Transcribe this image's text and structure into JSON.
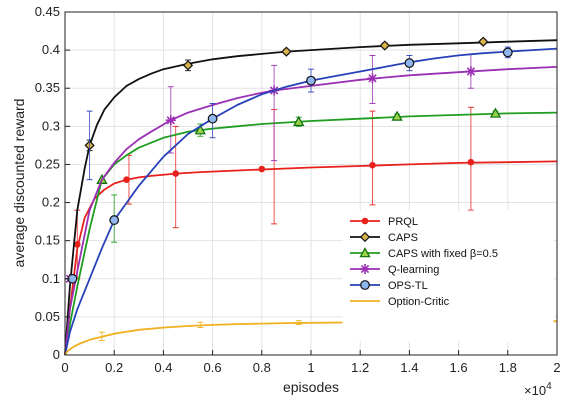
{
  "chart_data": {
    "type": "line",
    "title": "",
    "xlabel": "episodes",
    "ylabel": "average discounted reward",
    "x_multiplier_label": "×10",
    "x_multiplier_exp": "4",
    "xlim": [
      0,
      2
    ],
    "ylim": [
      0,
      0.45
    ],
    "xticks": [
      "0",
      "0.2",
      "0.4",
      "0.6",
      "0.8",
      "1",
      "1.2",
      "1.4",
      "1.6",
      "1.8",
      "2"
    ],
    "yticks": [
      "0",
      "0.05",
      "0.1",
      "0.15",
      "0.2",
      "0.25",
      "0.3",
      "0.35",
      "0.4",
      "0.45"
    ],
    "grid": true,
    "legend_position": "lower-right",
    "series": [
      {
        "name": "PRQL",
        "color": "#e8211c",
        "marker": "circle-small",
        "x": [
          0,
          0.02,
          0.05,
          0.08,
          0.12,
          0.16,
          0.2,
          0.25,
          0.3,
          0.35,
          0.45,
          0.55,
          0.7,
          0.85,
          1.0,
          1.2,
          1.4,
          1.6,
          1.8,
          2.0
        ],
        "y": [
          0,
          0.06,
          0.14,
          0.18,
          0.205,
          0.217,
          0.225,
          0.23,
          0.233,
          0.235,
          0.238,
          0.24,
          0.242,
          0.244,
          0.246,
          0.248,
          0.25,
          0.252,
          0.253,
          0.254
        ],
        "markers": [
          {
            "x": 0.05,
            "y": 0.145
          },
          {
            "x": 0.25,
            "y": 0.23
          },
          {
            "x": 0.45,
            "y": 0.238
          },
          {
            "x": 0.8,
            "y": 0.244
          },
          {
            "x": 1.25,
            "y": 0.249
          },
          {
            "x": 1.65,
            "y": 0.253
          }
        ],
        "errorbars": [
          {
            "x": 0.05,
            "lo": 0.1,
            "hi": 0.19
          },
          {
            "x": 0.26,
            "lo": 0.198,
            "hi": 0.262
          },
          {
            "x": 0.45,
            "lo": 0.167,
            "hi": 0.3
          },
          {
            "x": 0.85,
            "lo": 0.172,
            "hi": 0.322
          },
          {
            "x": 1.25,
            "lo": 0.197,
            "hi": 0.32
          },
          {
            "x": 1.65,
            "lo": 0.19,
            "hi": 0.325
          }
        ]
      },
      {
        "name": "CAPS",
        "color": "#111111",
        "marker": "diamond",
        "x": [
          0,
          0.02,
          0.05,
          0.08,
          0.1,
          0.13,
          0.16,
          0.2,
          0.25,
          0.3,
          0.35,
          0.4,
          0.5,
          0.6,
          0.7,
          0.8,
          0.9,
          1.0,
          1.2,
          1.4,
          1.6,
          1.8,
          2.0
        ],
        "y": [
          0,
          0.09,
          0.19,
          0.245,
          0.275,
          0.302,
          0.322,
          0.338,
          0.353,
          0.362,
          0.369,
          0.375,
          0.382,
          0.388,
          0.392,
          0.395,
          0.398,
          0.4,
          0.404,
          0.407,
          0.409,
          0.411,
          0.413
        ],
        "markers": [
          {
            "x": 0.1,
            "y": 0.275
          },
          {
            "x": 0.5,
            "y": 0.38
          },
          {
            "x": 0.9,
            "y": 0.398
          },
          {
            "x": 1.3,
            "y": 0.406
          },
          {
            "x": 1.7,
            "y": 0.411
          }
        ],
        "errorbars": [
          {
            "x": 0.1,
            "lo": 0.268,
            "hi": 0.282
          },
          {
            "x": 0.5,
            "lo": 0.373,
            "hi": 0.387
          },
          {
            "x": 0.9,
            "lo": 0.395,
            "hi": 0.401
          },
          {
            "x": 1.3,
            "lo": 0.403,
            "hi": 0.409
          },
          {
            "x": 1.7,
            "lo": 0.408,
            "hi": 0.414
          }
        ]
      },
      {
        "name": "CAPS with fixed β=0.5",
        "color": "#1f9d1f",
        "marker": "triangle",
        "x": [
          0,
          0.02,
          0.05,
          0.1,
          0.15,
          0.2,
          0.25,
          0.3,
          0.4,
          0.5,
          0.6,
          0.7,
          0.8,
          0.9,
          1.0,
          1.2,
          1.4,
          1.6,
          1.8,
          2.0
        ],
        "y": [
          0,
          0.04,
          0.09,
          0.165,
          0.23,
          0.25,
          0.262,
          0.272,
          0.285,
          0.293,
          0.297,
          0.3,
          0.303,
          0.305,
          0.307,
          0.31,
          0.313,
          0.315,
          0.317,
          0.318
        ],
        "markers": [
          {
            "x": 0.15,
            "y": 0.23
          },
          {
            "x": 0.55,
            "y": 0.295
          },
          {
            "x": 0.95,
            "y": 0.306
          },
          {
            "x": 1.35,
            "y": 0.313
          },
          {
            "x": 1.75,
            "y": 0.317
          }
        ],
        "errorbars": [
          {
            "x": 0.2,
            "lo": 0.148,
            "hi": 0.21
          },
          {
            "x": 0.55,
            "lo": 0.287,
            "hi": 0.303
          },
          {
            "x": 0.95,
            "lo": 0.3,
            "hi": 0.312
          },
          {
            "x": 1.35,
            "lo": 0.31,
            "hi": 0.316
          },
          {
            "x": 1.75,
            "lo": 0.314,
            "hi": 0.32
          }
        ]
      },
      {
        "name": "Q-learning",
        "color": "#9b30b5",
        "marker": "star",
        "x": [
          0,
          0.02,
          0.05,
          0.1,
          0.15,
          0.2,
          0.25,
          0.3,
          0.35,
          0.43,
          0.5,
          0.6,
          0.7,
          0.8,
          0.85,
          1.0,
          1.2,
          1.4,
          1.6,
          1.8,
          2.0
        ],
        "y": [
          0,
          0.06,
          0.11,
          0.19,
          0.23,
          0.252,
          0.27,
          0.283,
          0.293,
          0.308,
          0.318,
          0.328,
          0.337,
          0.344,
          0.347,
          0.353,
          0.361,
          0.367,
          0.371,
          0.375,
          0.378
        ],
        "markers": [
          {
            "x": 0.02,
            "y": 0.1
          },
          {
            "x": 0.43,
            "y": 0.308
          },
          {
            "x": 0.85,
            "y": 0.347
          },
          {
            "x": 1.25,
            "y": 0.363
          },
          {
            "x": 1.65,
            "y": 0.372
          }
        ],
        "errorbars": [
          {
            "x": 0.43,
            "lo": 0.265,
            "hi": 0.352
          },
          {
            "x": 0.85,
            "lo": 0.255,
            "hi": 0.38
          },
          {
            "x": 1.25,
            "lo": 0.33,
            "hi": 0.393
          },
          {
            "x": 1.65,
            "lo": 0.35,
            "hi": 0.395
          }
        ]
      },
      {
        "name": "OPS-TL",
        "color": "#2741b8",
        "marker": "circle",
        "x": [
          0,
          0.02,
          0.05,
          0.1,
          0.15,
          0.2,
          0.3,
          0.4,
          0.5,
          0.6,
          0.7,
          0.8,
          0.9,
          1.0,
          1.1,
          1.2,
          1.3,
          1.4,
          1.5,
          1.6,
          1.7,
          1.8,
          1.9,
          2.0
        ],
        "y": [
          0,
          0.03,
          0.06,
          0.1,
          0.14,
          0.177,
          0.222,
          0.26,
          0.29,
          0.31,
          0.328,
          0.342,
          0.352,
          0.36,
          0.366,
          0.372,
          0.378,
          0.384,
          0.389,
          0.393,
          0.396,
          0.398,
          0.4,
          0.402
        ],
        "markers": [
          {
            "x": 0.03,
            "y": 0.1
          },
          {
            "x": 0.2,
            "y": 0.177
          },
          {
            "x": 0.6,
            "y": 0.31
          },
          {
            "x": 1.0,
            "y": 0.36
          },
          {
            "x": 1.4,
            "y": 0.383
          },
          {
            "x": 1.8,
            "y": 0.397
          }
        ],
        "errorbars": [
          {
            "x": 0.1,
            "lo": 0.23,
            "hi": 0.32
          },
          {
            "x": 0.6,
            "lo": 0.285,
            "hi": 0.33
          },
          {
            "x": 1.0,
            "lo": 0.345,
            "hi": 0.375
          },
          {
            "x": 1.4,
            "lo": 0.373,
            "hi": 0.393
          },
          {
            "x": 1.8,
            "lo": 0.39,
            "hi": 0.404
          }
        ]
      },
      {
        "name": "Option-Critic",
        "color": "#f0b020",
        "marker": "none",
        "x": [
          0,
          0.01,
          0.03,
          0.06,
          0.1,
          0.15,
          0.2,
          0.3,
          0.4,
          0.5,
          0.6,
          0.7,
          0.8,
          0.9,
          1.0,
          1.2,
          1.4,
          1.6,
          1.8,
          2.0
        ],
        "y": [
          0,
          0.005,
          0.01,
          0.015,
          0.02,
          0.024,
          0.028,
          0.033,
          0.036,
          0.038,
          0.0395,
          0.0405,
          0.0412,
          0.0418,
          0.0422,
          0.0428,
          0.0433,
          0.0437,
          0.044,
          0.0443
        ],
        "markers": [],
        "errorbars": [
          {
            "x": 0.15,
            "lo": 0.019,
            "hi": 0.03
          },
          {
            "x": 0.55,
            "lo": 0.036,
            "hi": 0.043
          },
          {
            "x": 0.95,
            "lo": 0.04,
            "hi": 0.045
          },
          {
            "x": 1.35,
            "lo": 0.041,
            "hi": 0.046
          },
          {
            "x": 1.75,
            "lo": 0.042,
            "hi": 0.047
          }
        ]
      }
    ]
  }
}
